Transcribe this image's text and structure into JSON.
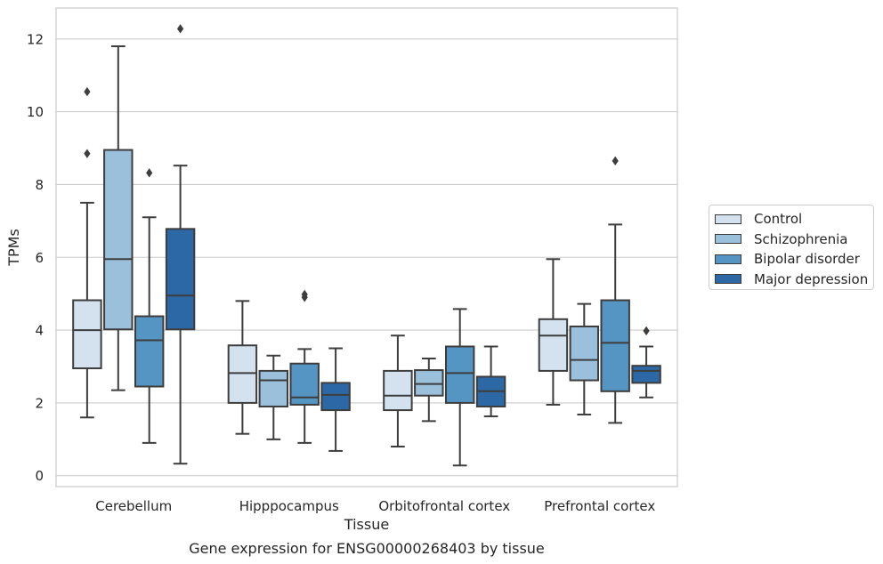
{
  "chart_data": {
    "type": "boxplot",
    "title": "Gene expression for ENSG00000268403 by tissue",
    "xlabel": "Tissue",
    "ylabel": "TPMs",
    "ylim": [
      -0.3,
      12.85
    ],
    "yticks": [
      0,
      2,
      4,
      6,
      8,
      10,
      12
    ],
    "grid": true,
    "legend_position": "right",
    "categories": [
      "Cerebellum",
      "Hipppocampus",
      "Orbitofrontal cortex",
      "Prefrontal cortex"
    ],
    "series": [
      {
        "name": "Control",
        "color": "#d4e2f0",
        "boxes": [
          {
            "whislo": 1.6,
            "q1": 2.95,
            "med": 4.0,
            "q3": 4.82,
            "whishi": 7.5,
            "fliers": [
              8.85,
              10.55
            ]
          },
          {
            "whislo": 1.15,
            "q1": 2.0,
            "med": 2.82,
            "q3": 3.58,
            "whishi": 4.8,
            "fliers": []
          },
          {
            "whislo": 0.8,
            "q1": 1.8,
            "med": 2.2,
            "q3": 2.88,
            "whishi": 3.85,
            "fliers": []
          },
          {
            "whislo": 1.95,
            "q1": 2.88,
            "med": 3.85,
            "q3": 4.3,
            "whishi": 5.95,
            "fliers": []
          }
        ]
      },
      {
        "name": "Schizophrenia",
        "color": "#9ac0dc",
        "boxes": [
          {
            "whislo": 2.35,
            "q1": 4.02,
            "med": 5.95,
            "q3": 8.95,
            "whishi": 11.8,
            "fliers": []
          },
          {
            "whislo": 1.0,
            "q1": 1.9,
            "med": 2.62,
            "q3": 2.88,
            "whishi": 3.3,
            "fliers": []
          },
          {
            "whislo": 1.5,
            "q1": 2.2,
            "med": 2.52,
            "q3": 2.9,
            "whishi": 3.22,
            "fliers": []
          },
          {
            "whislo": 1.68,
            "q1": 2.62,
            "med": 3.18,
            "q3": 4.1,
            "whishi": 4.72,
            "fliers": []
          }
        ]
      },
      {
        "name": "Bipolar disorder",
        "color": "#5495c4",
        "boxes": [
          {
            "whislo": 0.9,
            "q1": 2.45,
            "med": 3.72,
            "q3": 4.38,
            "whishi": 7.1,
            "fliers": [
              8.32
            ]
          },
          {
            "whislo": 0.9,
            "q1": 1.95,
            "med": 2.15,
            "q3": 3.08,
            "whishi": 3.48,
            "fliers": [
              4.9,
              4.98
            ]
          },
          {
            "whislo": 0.28,
            "q1": 2.0,
            "med": 2.82,
            "q3": 3.55,
            "whishi": 4.58,
            "fliers": []
          },
          {
            "whislo": 1.45,
            "q1": 2.32,
            "med": 3.65,
            "q3": 4.82,
            "whishi": 6.9,
            "fliers": [
              8.65
            ]
          }
        ]
      },
      {
        "name": "Major depression",
        "color": "#2c68a6",
        "boxes": [
          {
            "whislo": 0.33,
            "q1": 4.02,
            "med": 4.95,
            "q3": 6.78,
            "whishi": 8.52,
            "fliers": [
              12.28
            ]
          },
          {
            "whislo": 0.68,
            "q1": 1.8,
            "med": 2.22,
            "q3": 2.55,
            "whishi": 3.5,
            "fliers": []
          },
          {
            "whislo": 1.63,
            "q1": 1.9,
            "med": 2.32,
            "q3": 2.72,
            "whishi": 3.55,
            "fliers": []
          },
          {
            "whislo": 2.15,
            "q1": 2.55,
            "med": 2.88,
            "q3": 3.02,
            "whishi": 3.55,
            "fliers": [
              3.98
            ]
          }
        ]
      }
    ]
  }
}
